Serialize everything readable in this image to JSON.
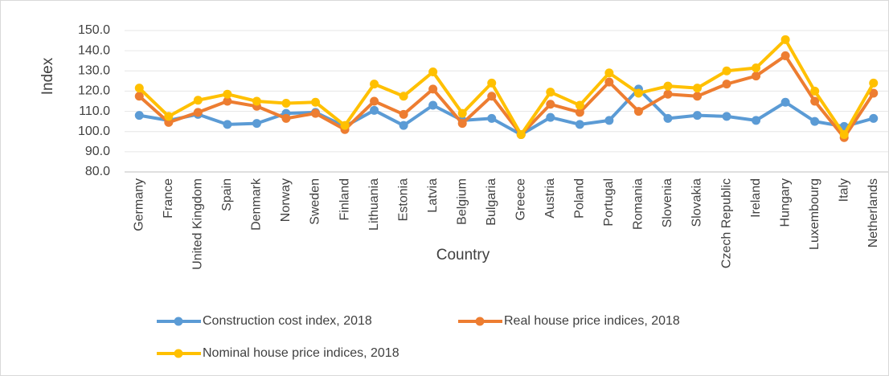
{
  "chart_data": {
    "type": "line",
    "x_label": "Country",
    "y_label": "Index",
    "categories": [
      "Germany",
      "France",
      "United Kingdom",
      "Spain",
      "Denmark",
      "Norway",
      "Sweden",
      "Finland",
      "Lithuania",
      "Estonia",
      "Latvia",
      "Belgium",
      "Bulgaria",
      "Greece",
      "Austria",
      "Poland",
      "Portugal",
      "Romania",
      "Slovenia",
      "Slovakia",
      "Czech Republic",
      "Ireland",
      "Hungary",
      "Luxembourg",
      "Italy",
      "Netherlands"
    ],
    "series": [
      {
        "name": "Construction cost index, 2018",
        "color": "#5b9bd5",
        "values": [
          108,
          105.5,
          108.5,
          103.5,
          104,
          109,
          109.5,
          102.5,
          110.5,
          103,
          113,
          105.5,
          106.5,
          98.5,
          107,
          103.5,
          105.5,
          121,
          106.5,
          108,
          107.5,
          105.5,
          114.5,
          105,
          102.5,
          106.5
        ]
      },
      {
        "name": "Real house price indices, 2018",
        "color": "#ed7d31",
        "values": [
          117.5,
          104.5,
          109.5,
          115,
          112.5,
          106.5,
          109,
          101,
          115,
          108.5,
          121,
          104,
          117.5,
          98.5,
          113.5,
          109.5,
          124.5,
          110,
          118.5,
          117.5,
          123.5,
          127.5,
          137.5,
          115,
          97,
          119
        ]
      },
      {
        "name": "Nominal house price indices, 2018",
        "color": "#ffc000",
        "values": [
          121.5,
          107.5,
          115.5,
          118.5,
          115,
          114,
          114.5,
          103,
          123.5,
          117.5,
          129.5,
          109,
          124,
          98.5,
          119.5,
          113,
          129,
          119,
          122.5,
          121.5,
          130,
          131.5,
          145.5,
          120,
          98.5,
          124
        ]
      }
    ],
    "ylim": [
      80,
      150
    ],
    "yticks": [
      {
        "value": 80,
        "label": "80.0"
      },
      {
        "value": 90,
        "label": "90.0"
      },
      {
        "value": 100,
        "label": "100.0"
      },
      {
        "value": 110,
        "label": "110.0"
      },
      {
        "value": 120,
        "label": "120.0"
      },
      {
        "value": 130,
        "label": "130.0"
      },
      {
        "value": 140,
        "label": "140.0"
      },
      {
        "value": 150,
        "label": "150.0"
      }
    ],
    "grid": true,
    "legend": "bottom"
  }
}
